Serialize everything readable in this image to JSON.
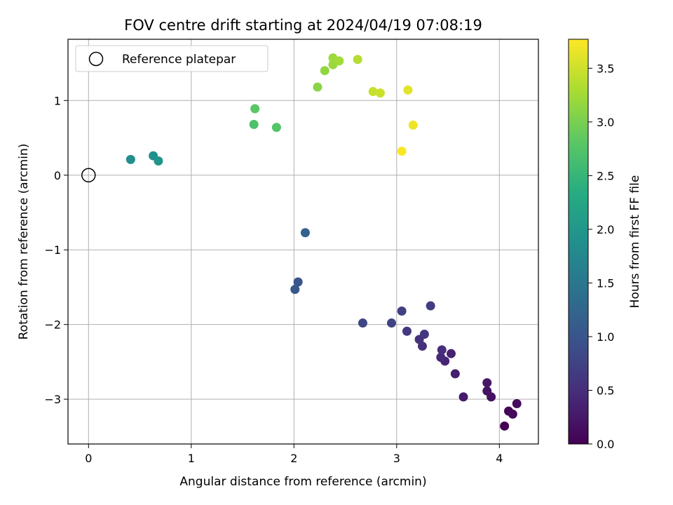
{
  "chart_data": {
    "type": "scatter",
    "title": "FOV centre drift starting at 2024/04/19 07:08:19",
    "xlabel": "Angular distance from reference (arcmin)",
    "ylabel": "Rotation from reference (arcmin)",
    "xlim": [
      -0.2,
      4.38
    ],
    "ylim": [
      -3.6,
      1.82
    ],
    "x_ticks": [
      0,
      1,
      2,
      3,
      4
    ],
    "x_tick_labels": [
      "0",
      "1",
      "2",
      "3",
      "4"
    ],
    "y_ticks": [
      1,
      0,
      -1,
      -2,
      -3
    ],
    "y_tick_labels": [
      "1",
      "0",
      "−1",
      "−2",
      "−3"
    ],
    "grid": true,
    "legend": {
      "placement": "top-left",
      "entries": [
        "Reference platepar"
      ]
    },
    "reference_point": {
      "name": "Reference platepar",
      "x": 0,
      "y": 0
    },
    "colorbar": {
      "label": "Hours from first FF file",
      "colormap": "viridis",
      "range": [
        0.0,
        3.77
      ],
      "ticks": [
        0.0,
        0.5,
        1.0,
        1.5,
        2.0,
        2.5,
        3.0,
        3.5
      ],
      "tick_labels": [
        "0.0",
        "0.5",
        "1.0",
        "1.5",
        "2.0",
        "2.5",
        "3.0",
        "3.5"
      ]
    },
    "points": [
      {
        "x": 4.05,
        "y": -3.36,
        "hours": 0.0
      },
      {
        "x": 4.09,
        "y": -3.16,
        "hours": 0.04
      },
      {
        "x": 4.13,
        "y": -3.2,
        "hours": 0.08
      },
      {
        "x": 4.17,
        "y": -3.06,
        "hours": 0.12
      },
      {
        "x": 3.92,
        "y": -2.97,
        "hours": 0.16
      },
      {
        "x": 3.88,
        "y": -2.89,
        "hours": 0.2
      },
      {
        "x": 3.88,
        "y": -2.78,
        "hours": 0.24
      },
      {
        "x": 3.65,
        "y": -2.97,
        "hours": 0.28
      },
      {
        "x": 3.57,
        "y": -2.66,
        "hours": 0.32
      },
      {
        "x": 3.53,
        "y": -2.39,
        "hours": 0.36
      },
      {
        "x": 3.47,
        "y": -2.49,
        "hours": 0.4
      },
      {
        "x": 3.43,
        "y": -2.44,
        "hours": 0.44
      },
      {
        "x": 3.44,
        "y": -2.34,
        "hours": 0.48
      },
      {
        "x": 3.25,
        "y": -2.29,
        "hours": 0.52
      },
      {
        "x": 3.22,
        "y": -2.2,
        "hours": 0.56
      },
      {
        "x": 3.27,
        "y": -2.13,
        "hours": 0.6
      },
      {
        "x": 3.1,
        "y": -2.09,
        "hours": 0.64
      },
      {
        "x": 3.33,
        "y": -1.75,
        "hours": 0.68
      },
      {
        "x": 3.05,
        "y": -1.82,
        "hours": 0.72
      },
      {
        "x": 2.95,
        "y": -1.98,
        "hours": 0.76
      },
      {
        "x": 2.67,
        "y": -1.98,
        "hours": 0.8
      },
      {
        "x": 2.04,
        "y": -1.43,
        "hours": 1.0
      },
      {
        "x": 2.01,
        "y": -1.53,
        "hours": 1.05
      },
      {
        "x": 2.11,
        "y": -0.77,
        "hours": 1.2
      },
      {
        "x": 0.41,
        "y": 0.21,
        "hours": 1.85
      },
      {
        "x": 0.63,
        "y": 0.26,
        "hours": 1.9
      },
      {
        "x": 0.68,
        "y": 0.19,
        "hours": 1.95
      },
      {
        "x": 1.61,
        "y": 0.68,
        "hours": 2.7
      },
      {
        "x": 1.83,
        "y": 0.64,
        "hours": 2.75
      },
      {
        "x": 1.62,
        "y": 0.89,
        "hours": 2.8
      },
      {
        "x": 2.23,
        "y": 1.18,
        "hours": 3.1
      },
      {
        "x": 2.3,
        "y": 1.4,
        "hours": 3.15
      },
      {
        "x": 2.38,
        "y": 1.48,
        "hours": 3.2
      },
      {
        "x": 2.38,
        "y": 1.57,
        "hours": 3.22
      },
      {
        "x": 2.44,
        "y": 1.53,
        "hours": 3.25
      },
      {
        "x": 2.62,
        "y": 1.55,
        "hours": 3.35
      },
      {
        "x": 2.77,
        "y": 1.12,
        "hours": 3.45
      },
      {
        "x": 2.84,
        "y": 1.1,
        "hours": 3.48
      },
      {
        "x": 3.11,
        "y": 1.14,
        "hours": 3.62
      },
      {
        "x": 3.16,
        "y": 0.67,
        "hours": 3.68
      },
      {
        "x": 3.05,
        "y": 0.32,
        "hours": 3.75
      }
    ]
  }
}
